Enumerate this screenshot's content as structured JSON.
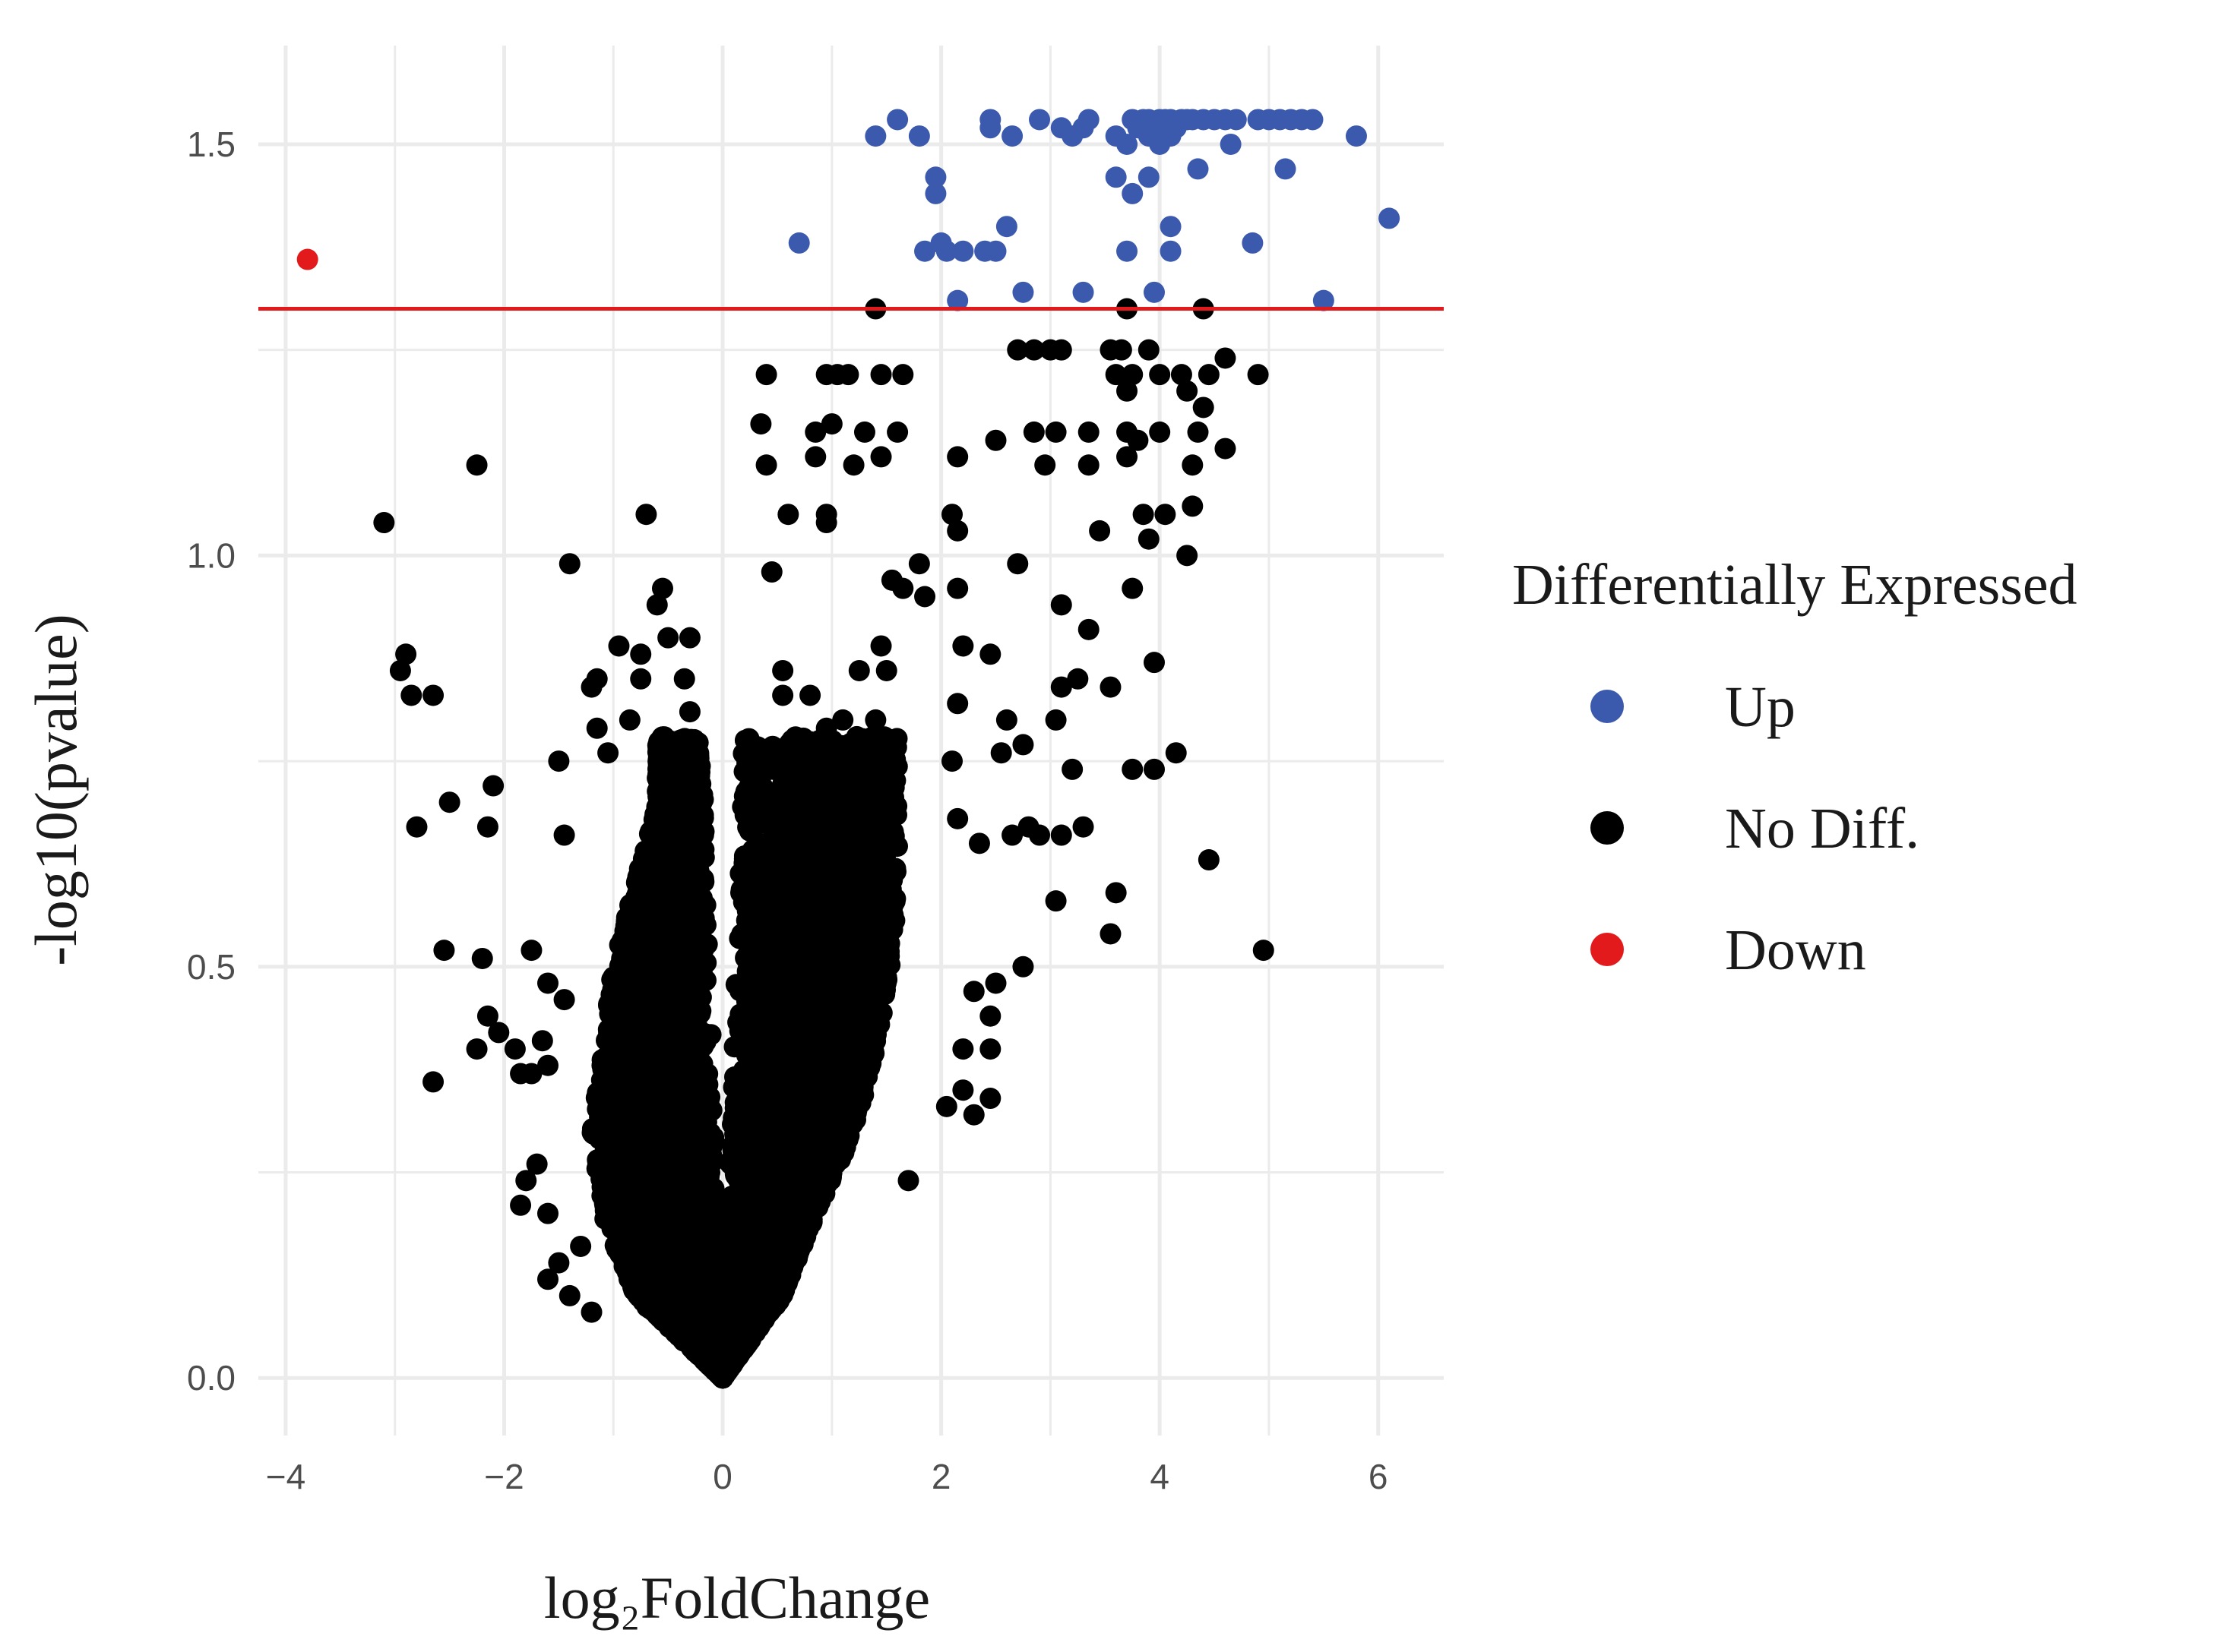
{
  "chart_data": {
    "type": "scatter",
    "xlabel": "log₂FoldChange",
    "ylabel": "-log10(pvalue)",
    "xlim": [
      -4.25,
      6.6
    ],
    "ylim": [
      -0.07,
      1.62
    ],
    "x_ticks": [
      -4,
      -2,
      0,
      2,
      4,
      6
    ],
    "y_ticks": [
      0.0,
      0.5,
      1.0,
      1.5
    ],
    "x_tick_labels": [
      "−4",
      "−2",
      "0",
      "2",
      "4",
      "6"
    ],
    "y_tick_labels": [
      "0.0",
      "0.5",
      "1.0",
      "1.5"
    ],
    "grid": true,
    "threshold_line": {
      "y": 1.3,
      "color": "#e31a1c"
    },
    "legend": {
      "title": "Differentially Expressed",
      "position": "right",
      "entries": [
        {
          "label": "Up",
          "color": "#3c5aad"
        },
        {
          "label": "No Diff.",
          "color": "#000000"
        },
        {
          "label": "Down",
          "color": "#e31a1c"
        }
      ]
    },
    "series": [
      {
        "name": "Up",
        "color": "#3c5aad",
        "points": [
          [
            1.4,
            1.51
          ],
          [
            1.6,
            1.53
          ],
          [
            1.8,
            1.51
          ],
          [
            2.45,
            1.53
          ],
          [
            2.45,
            1.52
          ],
          [
            2.65,
            1.51
          ],
          [
            2.9,
            1.53
          ],
          [
            3.1,
            1.52
          ],
          [
            3.2,
            1.51
          ],
          [
            3.35,
            1.53
          ],
          [
            3.3,
            1.52
          ],
          [
            3.6,
            1.51
          ],
          [
            3.7,
            1.5
          ],
          [
            3.8,
            1.52
          ],
          [
            3.9,
            1.53
          ],
          [
            3.9,
            1.51
          ],
          [
            4.0,
            1.5
          ],
          [
            4.05,
            1.53
          ],
          [
            4.1,
            1.51
          ],
          [
            4.15,
            1.52
          ],
          [
            4.2,
            1.53
          ],
          [
            4.3,
            1.53
          ],
          [
            4.4,
            1.53
          ],
          [
            4.5,
            1.53
          ],
          [
            4.6,
            1.53
          ],
          [
            4.7,
            1.53
          ],
          [
            4.9,
            1.53
          ],
          [
            5.0,
            1.53
          ],
          [
            5.1,
            1.53
          ],
          [
            5.2,
            1.53
          ],
          [
            5.3,
            1.53
          ],
          [
            5.4,
            1.53
          ],
          [
            3.75,
            1.53
          ],
          [
            3.85,
            1.53
          ],
          [
            3.95,
            1.52
          ],
          [
            4.0,
            1.53
          ],
          [
            4.1,
            1.53
          ],
          [
            4.25,
            1.53
          ],
          [
            4.65,
            1.5
          ],
          [
            5.8,
            1.51
          ],
          [
            4.35,
            1.47
          ],
          [
            5.15,
            1.47
          ],
          [
            3.6,
            1.46
          ],
          [
            3.9,
            1.46
          ],
          [
            1.95,
            1.46
          ],
          [
            1.95,
            1.44
          ],
          [
            3.75,
            1.44
          ],
          [
            6.1,
            1.41
          ],
          [
            2.6,
            1.4
          ],
          [
            4.1,
            1.4
          ],
          [
            0.7,
            1.38
          ],
          [
            2.0,
            1.38
          ],
          [
            4.85,
            1.38
          ],
          [
            1.85,
            1.37
          ],
          [
            2.05,
            1.37
          ],
          [
            2.2,
            1.37
          ],
          [
            2.4,
            1.37
          ],
          [
            2.5,
            1.37
          ],
          [
            3.7,
            1.37
          ],
          [
            4.1,
            1.37
          ],
          [
            3.95,
            1.32
          ],
          [
            2.75,
            1.32
          ],
          [
            3.3,
            1.32
          ],
          [
            5.5,
            1.31
          ],
          [
            2.15,
            1.31
          ]
        ]
      },
      {
        "name": "Down",
        "color": "#e31a1c",
        "points": [
          [
            -3.8,
            1.36
          ]
        ]
      }
    ],
    "no_diff_envelope": {
      "name": "No Diff.",
      "color": "#000000",
      "point_count": 7000,
      "max_x_by_y": [
        [
          0.0,
          0.0
        ],
        [
          0.1,
          0.55
        ],
        [
          0.2,
          0.85
        ],
        [
          0.3,
          1.2
        ],
        [
          0.4,
          1.4
        ],
        [
          0.5,
          1.55
        ],
        [
          0.6,
          1.6
        ],
        [
          0.7,
          1.6
        ]
      ],
      "min_x_by_y": [
        [
          0.0,
          0.0
        ],
        [
          0.1,
          -0.8
        ],
        [
          0.2,
          -1.1
        ],
        [
          0.3,
          -1.2
        ],
        [
          0.4,
          -1.1
        ],
        [
          0.5,
          -1.0
        ],
        [
          0.6,
          -0.8
        ],
        [
          0.7,
          -0.6
        ]
      ]
    },
    "no_diff_outliers": [
      [
        1.4,
        1.3
      ],
      [
        3.7,
        1.3
      ],
      [
        4.4,
        1.3
      ],
      [
        2.7,
        1.25
      ],
      [
        2.85,
        1.25
      ],
      [
        3.0,
        1.25
      ],
      [
        3.1,
        1.25
      ],
      [
        3.55,
        1.25
      ],
      [
        3.65,
        1.25
      ],
      [
        3.9,
        1.25
      ],
      [
        4.6,
        1.24
      ],
      [
        0.4,
        1.22
      ],
      [
        0.95,
        1.22
      ],
      [
        1.05,
        1.22
      ],
      [
        1.15,
        1.22
      ],
      [
        1.45,
        1.22
      ],
      [
        1.65,
        1.22
      ],
      [
        3.6,
        1.22
      ],
      [
        3.75,
        1.22
      ],
      [
        4.0,
        1.22
      ],
      [
        4.2,
        1.22
      ],
      [
        4.45,
        1.22
      ],
      [
        4.9,
        1.22
      ],
      [
        3.7,
        1.2
      ],
      [
        4.25,
        1.2
      ],
      [
        4.4,
        1.18
      ],
      [
        0.35,
        1.16
      ],
      [
        0.85,
        1.15
      ],
      [
        1.0,
        1.16
      ],
      [
        1.3,
        1.15
      ],
      [
        1.6,
        1.15
      ],
      [
        2.85,
        1.15
      ],
      [
        3.05,
        1.15
      ],
      [
        3.35,
        1.15
      ],
      [
        3.7,
        1.15
      ],
      [
        3.8,
        1.14
      ],
      [
        4.0,
        1.15
      ],
      [
        4.35,
        1.15
      ],
      [
        2.5,
        1.14
      ],
      [
        4.6,
        1.13
      ],
      [
        0.85,
        1.12
      ],
      [
        1.45,
        1.12
      ],
      [
        2.15,
        1.12
      ],
      [
        3.7,
        1.12
      ],
      [
        0.4,
        1.11
      ],
      [
        1.2,
        1.11
      ],
      [
        2.95,
        1.11
      ],
      [
        3.35,
        1.11
      ],
      [
        4.3,
        1.11
      ],
      [
        0.6,
        1.05
      ],
      [
        0.95,
        1.05
      ],
      [
        2.1,
        1.05
      ],
      [
        3.85,
        1.05
      ],
      [
        4.05,
        1.05
      ],
      [
        4.3,
        1.06
      ],
      [
        0.95,
        1.04
      ],
      [
        2.15,
        1.03
      ],
      [
        3.45,
        1.03
      ],
      [
        3.9,
        1.02
      ],
      [
        -0.7,
        1.05
      ],
      [
        -2.25,
        1.11
      ],
      [
        -3.1,
        1.04
      ],
      [
        -1.4,
        0.99
      ],
      [
        1.8,
        0.99
      ],
      [
        2.7,
        0.99
      ],
      [
        4.25,
        1.0
      ],
      [
        0.45,
        0.98
      ],
      [
        1.55,
        0.97
      ],
      [
        1.65,
        0.96
      ],
      [
        1.85,
        0.95
      ],
      [
        2.15,
        0.96
      ],
      [
        3.75,
        0.96
      ],
      [
        -0.55,
        0.96
      ],
      [
        -0.6,
        0.94
      ],
      [
        3.1,
        0.94
      ],
      [
        3.35,
        0.91
      ],
      [
        1.45,
        0.89
      ],
      [
        2.2,
        0.89
      ],
      [
        2.45,
        0.88
      ],
      [
        -0.3,
        0.9
      ],
      [
        -0.5,
        0.9
      ],
      [
        -0.95,
        0.89
      ],
      [
        -0.75,
        0.88
      ],
      [
        -2.9,
        0.88
      ],
      [
        -2.95,
        0.86
      ],
      [
        -0.35,
        0.85
      ],
      [
        -0.75,
        0.85
      ],
      [
        -1.15,
        0.85
      ],
      [
        -1.2,
        0.84
      ],
      [
        0.55,
        0.86
      ],
      [
        1.25,
        0.86
      ],
      [
        1.5,
        0.86
      ],
      [
        3.95,
        0.87
      ],
      [
        3.25,
        0.85
      ],
      [
        3.1,
        0.84
      ],
      [
        3.55,
        0.84
      ],
      [
        -2.85,
        0.83
      ],
      [
        -2.65,
        0.83
      ],
      [
        2.15,
        0.82
      ],
      [
        -0.3,
        0.81
      ],
      [
        0.55,
        0.83
      ],
      [
        0.8,
        0.83
      ],
      [
        0.95,
        0.79
      ],
      [
        1.1,
        0.8
      ],
      [
        1.4,
        0.8
      ],
      [
        3.05,
        0.8
      ],
      [
        2.6,
        0.8
      ],
      [
        -0.85,
        0.8
      ],
      [
        -1.15,
        0.79
      ],
      [
        4.15,
        0.76
      ],
      [
        3.2,
        0.74
      ],
      [
        3.75,
        0.74
      ],
      [
        3.95,
        0.74
      ],
      [
        -1.05,
        0.76
      ],
      [
        -1.5,
        0.75
      ],
      [
        2.1,
        0.75
      ],
      [
        2.55,
        0.76
      ],
      [
        2.75,
        0.77
      ],
      [
        -2.1,
        0.72
      ],
      [
        -2.5,
        0.7
      ],
      [
        -2.8,
        0.67
      ],
      [
        -2.15,
        0.67
      ],
      [
        -1.45,
        0.66
      ],
      [
        2.15,
        0.68
      ],
      [
        2.65,
        0.66
      ],
      [
        2.8,
        0.67
      ],
      [
        2.9,
        0.66
      ],
      [
        3.1,
        0.66
      ],
      [
        3.3,
        0.67
      ],
      [
        2.35,
        0.65
      ],
      [
        4.45,
        0.63
      ],
      [
        3.6,
        0.59
      ],
      [
        3.05,
        0.58
      ],
      [
        3.55,
        0.54
      ],
      [
        4.95,
        0.52
      ],
      [
        -2.55,
        0.52
      ],
      [
        -2.2,
        0.51
      ],
      [
        -1.75,
        0.52
      ],
      [
        -1.6,
        0.48
      ],
      [
        -1.45,
        0.46
      ],
      [
        2.75,
        0.5
      ],
      [
        2.5,
        0.48
      ],
      [
        2.3,
        0.47
      ],
      [
        -2.15,
        0.44
      ],
      [
        -2.05,
        0.42
      ],
      [
        -1.9,
        0.4
      ],
      [
        -2.25,
        0.4
      ],
      [
        -1.65,
        0.41
      ],
      [
        2.45,
        0.44
      ],
      [
        2.2,
        0.4
      ],
      [
        2.45,
        0.4
      ],
      [
        -1.85,
        0.37
      ],
      [
        -2.65,
        0.36
      ],
      [
        -1.75,
        0.37
      ],
      [
        -1.6,
        0.38
      ],
      [
        2.2,
        0.35
      ],
      [
        2.3,
        0.32
      ],
      [
        2.05,
        0.33
      ],
      [
        2.45,
        0.34
      ],
      [
        -1.7,
        0.26
      ],
      [
        -1.8,
        0.24
      ],
      [
        -1.85,
        0.21
      ],
      [
        -1.6,
        0.2
      ],
      [
        1.7,
        0.24
      ],
      [
        -1.3,
        0.16
      ],
      [
        -1.5,
        0.14
      ],
      [
        -1.6,
        0.12
      ],
      [
        -1.4,
        0.1
      ],
      [
        -1.2,
        0.08
      ]
    ]
  }
}
